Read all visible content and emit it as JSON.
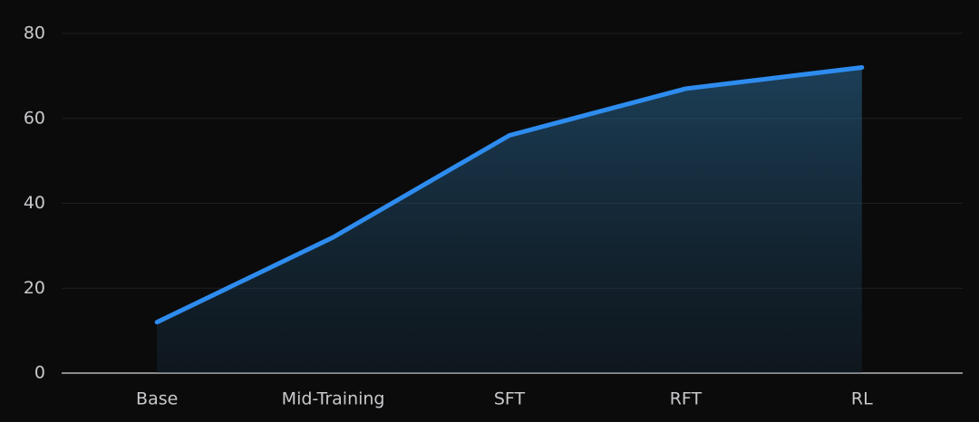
{
  "chart_data": {
    "type": "area",
    "categories": [
      "Base",
      "Mid-Training",
      "SFT",
      "RFT",
      "RL"
    ],
    "values": [
      12,
      32,
      56,
      67,
      72
    ],
    "color": "#2e8cef",
    "ylim": [
      0,
      80
    ],
    "yticks": [
      0,
      20,
      40,
      60,
      80
    ],
    "grid": true
  }
}
